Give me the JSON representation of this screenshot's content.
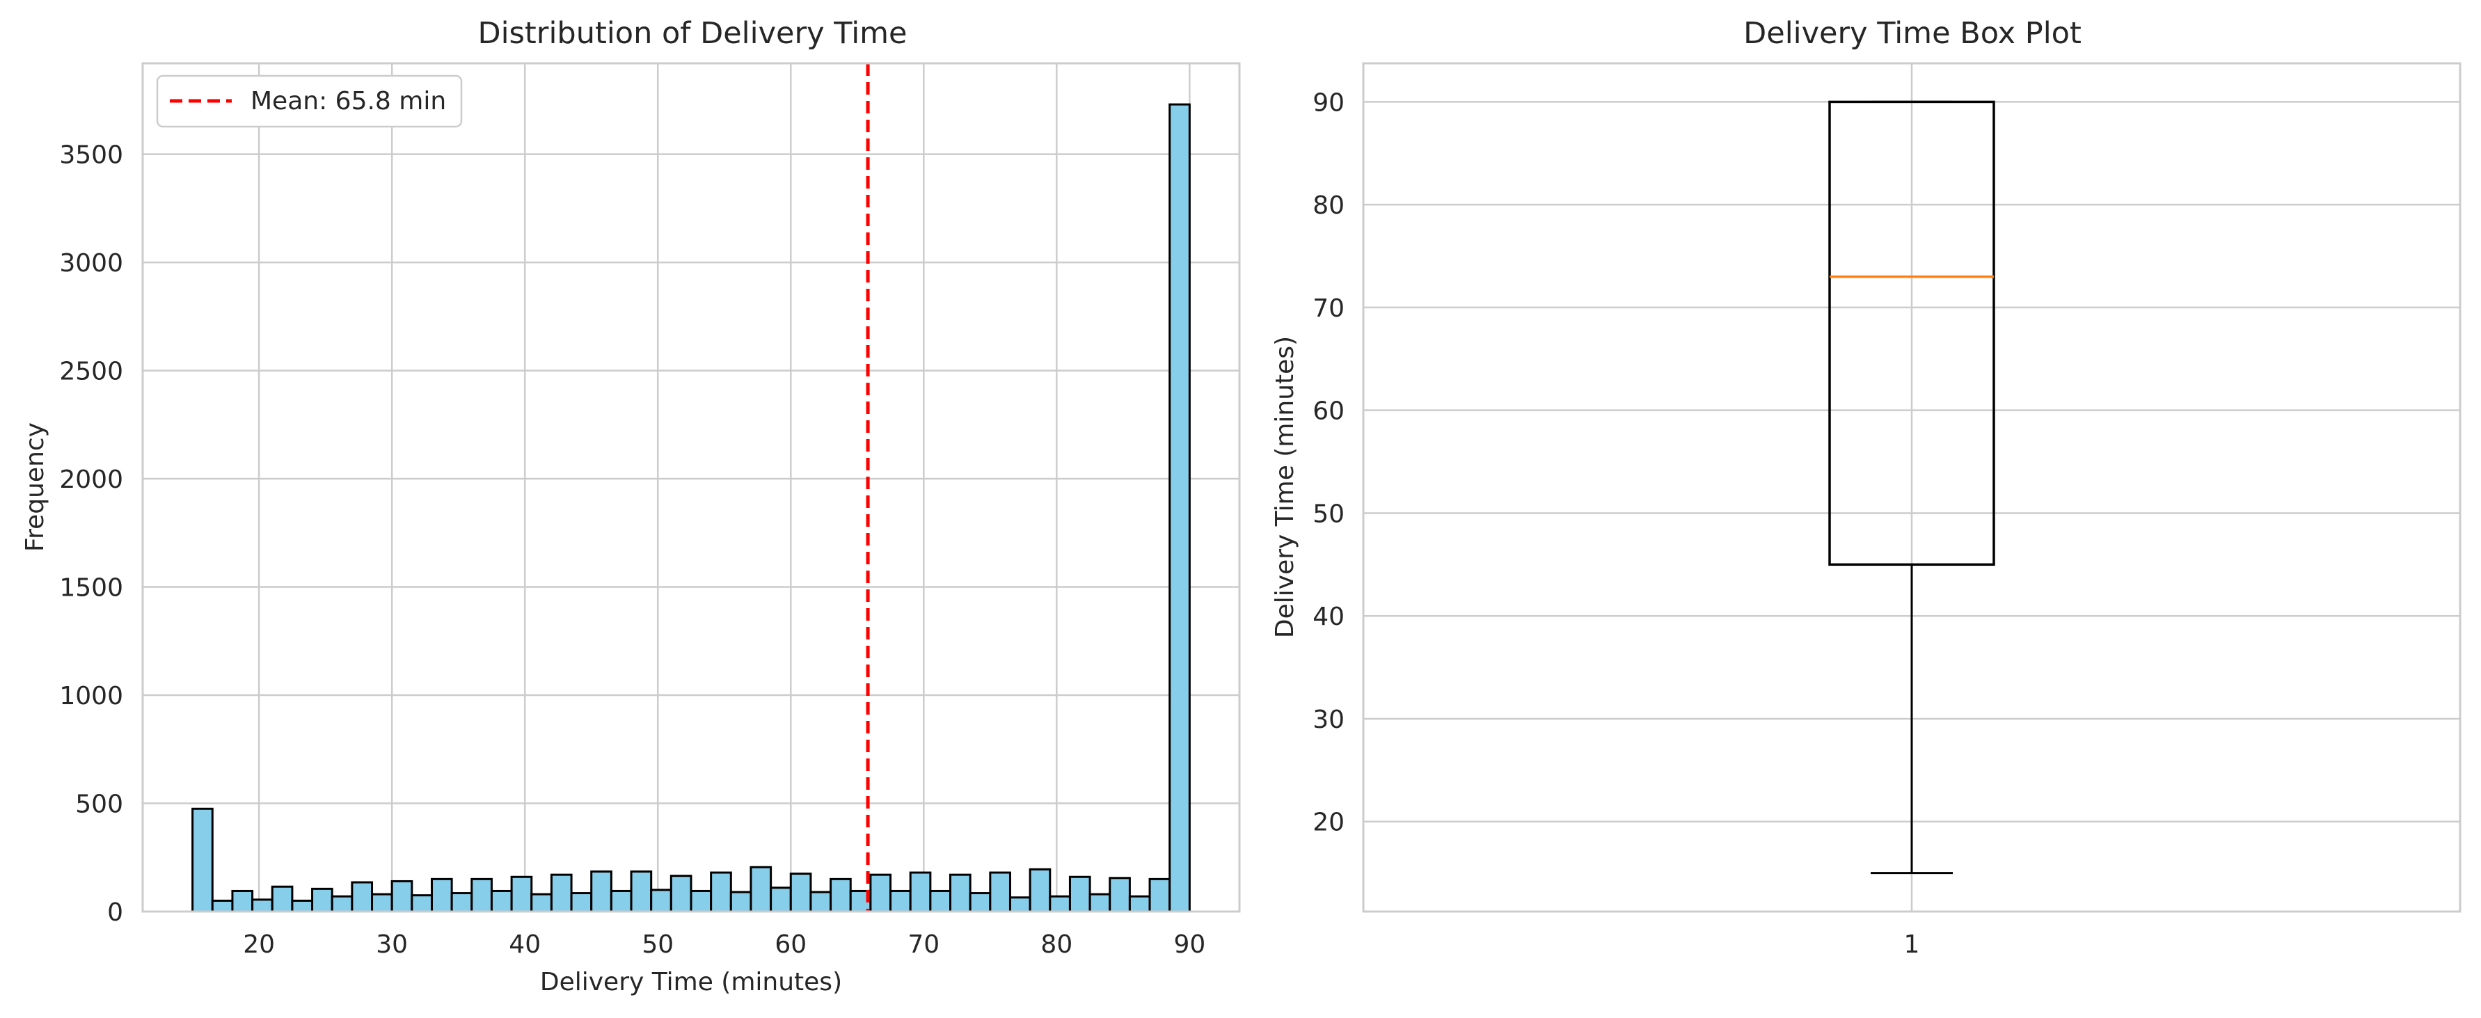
{
  "chart_data": [
    {
      "type": "bar",
      "title": "Distribution of Delivery Time",
      "xlabel": "Delivery Time (minutes)",
      "ylabel": "Frequency",
      "xlim": [
        11.25,
        93.75
      ],
      "ylim": [
        0,
        3920
      ],
      "xticks": [
        20,
        30,
        40,
        50,
        60,
        70,
        80,
        90
      ],
      "yticks": [
        0,
        500,
        1000,
        1500,
        2000,
        2500,
        3000,
        3500
      ],
      "grid": true,
      "bar_color": "#87ceeb",
      "bin_edges": [
        15,
        16.5,
        18,
        19.5,
        21,
        22.5,
        24,
        25.5,
        27,
        28.5,
        30,
        31.5,
        33,
        34.5,
        36,
        37.5,
        39,
        40.5,
        42,
        43.5,
        45,
        46.5,
        48,
        49.5,
        51,
        52.5,
        54,
        55.5,
        57,
        58.5,
        60,
        61.5,
        63,
        64.5,
        66,
        67.5,
        69,
        70.5,
        72,
        73.5,
        75,
        76.5,
        78,
        79.5,
        81,
        82.5,
        84,
        85.5,
        87,
        88.5,
        90
      ],
      "values": [
        475,
        50,
        95,
        55,
        115,
        50,
        105,
        70,
        135,
        80,
        140,
        75,
        150,
        85,
        150,
        95,
        160,
        80,
        170,
        85,
        185,
        95,
        185,
        100,
        165,
        95,
        180,
        90,
        205,
        110,
        175,
        90,
        150,
        95,
        170,
        95,
        180,
        95,
        170,
        85,
        180,
        65,
        195,
        70,
        160,
        80,
        155,
        70,
        150,
        3730
      ],
      "mean_line": {
        "value": 65.8,
        "color": "#ff0000",
        "label": "Mean: 65.8 min"
      },
      "legend": {
        "position": "top-left",
        "entries": [
          "Mean: 65.8 min"
        ]
      }
    },
    {
      "type": "box",
      "title": "Delivery Time Box Plot",
      "xlabel": "",
      "ylabel": "Delivery Time (minutes)",
      "xticks": [
        "1"
      ],
      "yticks": [
        20,
        30,
        40,
        50,
        60,
        70,
        80,
        90
      ],
      "ylim": [
        11.25,
        93.75
      ],
      "grid": true,
      "box": {
        "whisker_low": 15,
        "q1": 45,
        "median": 73,
        "q3": 90,
        "whisker_high": 90,
        "median_color": "#ff7f0e"
      }
    }
  ]
}
